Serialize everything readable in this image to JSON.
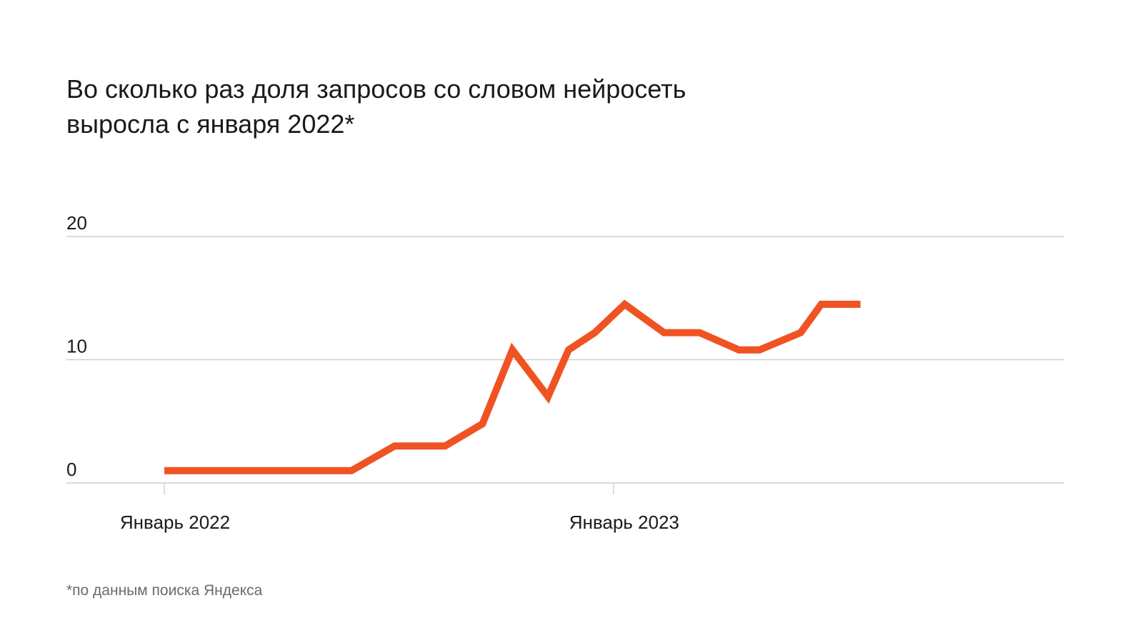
{
  "chart_data": {
    "type": "line",
    "title": "Во сколько раз доля запросов со словом нейросеть выросла с января 2022*",
    "xlabel": "",
    "ylabel": "",
    "ylim": [
      0,
      20
    ],
    "yticks": [
      "0",
      "10",
      "20"
    ],
    "xtick_labels": [
      {
        "label": "Январь 2022",
        "index": 0
      },
      {
        "label": "Январь 2023",
        "index": 12
      }
    ],
    "grid": true,
    "colors": {
      "line": "#f05323",
      "grid": "#c8c8c8",
      "text": "#1a1a1a"
    },
    "series": [
      {
        "values": [
          1,
          1,
          1,
          1,
          1,
          1,
          3,
          3,
          4.8,
          10.8,
          7,
          10.8,
          12.2,
          14.5,
          12.2,
          12.2,
          10.8,
          10.8,
          12.2,
          14.5,
          14.5
        ]
      }
    ],
    "x_positions": [
      0,
      1,
      2,
      3,
      4,
      5,
      6.15,
      7.5,
      8.5,
      9.3,
      10.25,
      10.8,
      11.5,
      12.3,
      13.35,
      14.3,
      15.35,
      15.9,
      17.0,
      17.55,
      18.6
    ]
  },
  "footnote": "*по данным поиска Яндекса"
}
